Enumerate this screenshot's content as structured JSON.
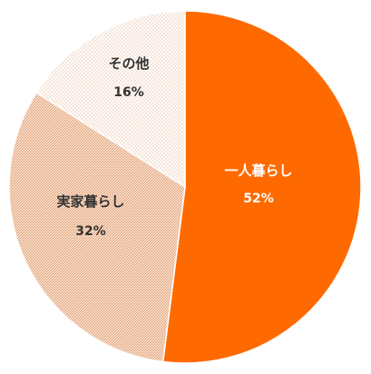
{
  "chart_data": {
    "type": "pie",
    "title": "",
    "slices": [
      {
        "label": "一人暮らし",
        "value": 52,
        "display": "52%",
        "color": "#ff6a00",
        "pattern": "solid",
        "text_color": "#ffffff"
      },
      {
        "label": "実家暮らし",
        "value": 32,
        "display": "32%",
        "color": "#f0a97a",
        "pattern": "hatch",
        "text_color": "#333333"
      },
      {
        "label": "その他",
        "value": 16,
        "display": "16%",
        "color": "#e8b898",
        "pattern": "dots",
        "text_color": "#333333"
      }
    ],
    "start_angle_deg": 0,
    "direction": "clockwise",
    "legend": "none"
  }
}
